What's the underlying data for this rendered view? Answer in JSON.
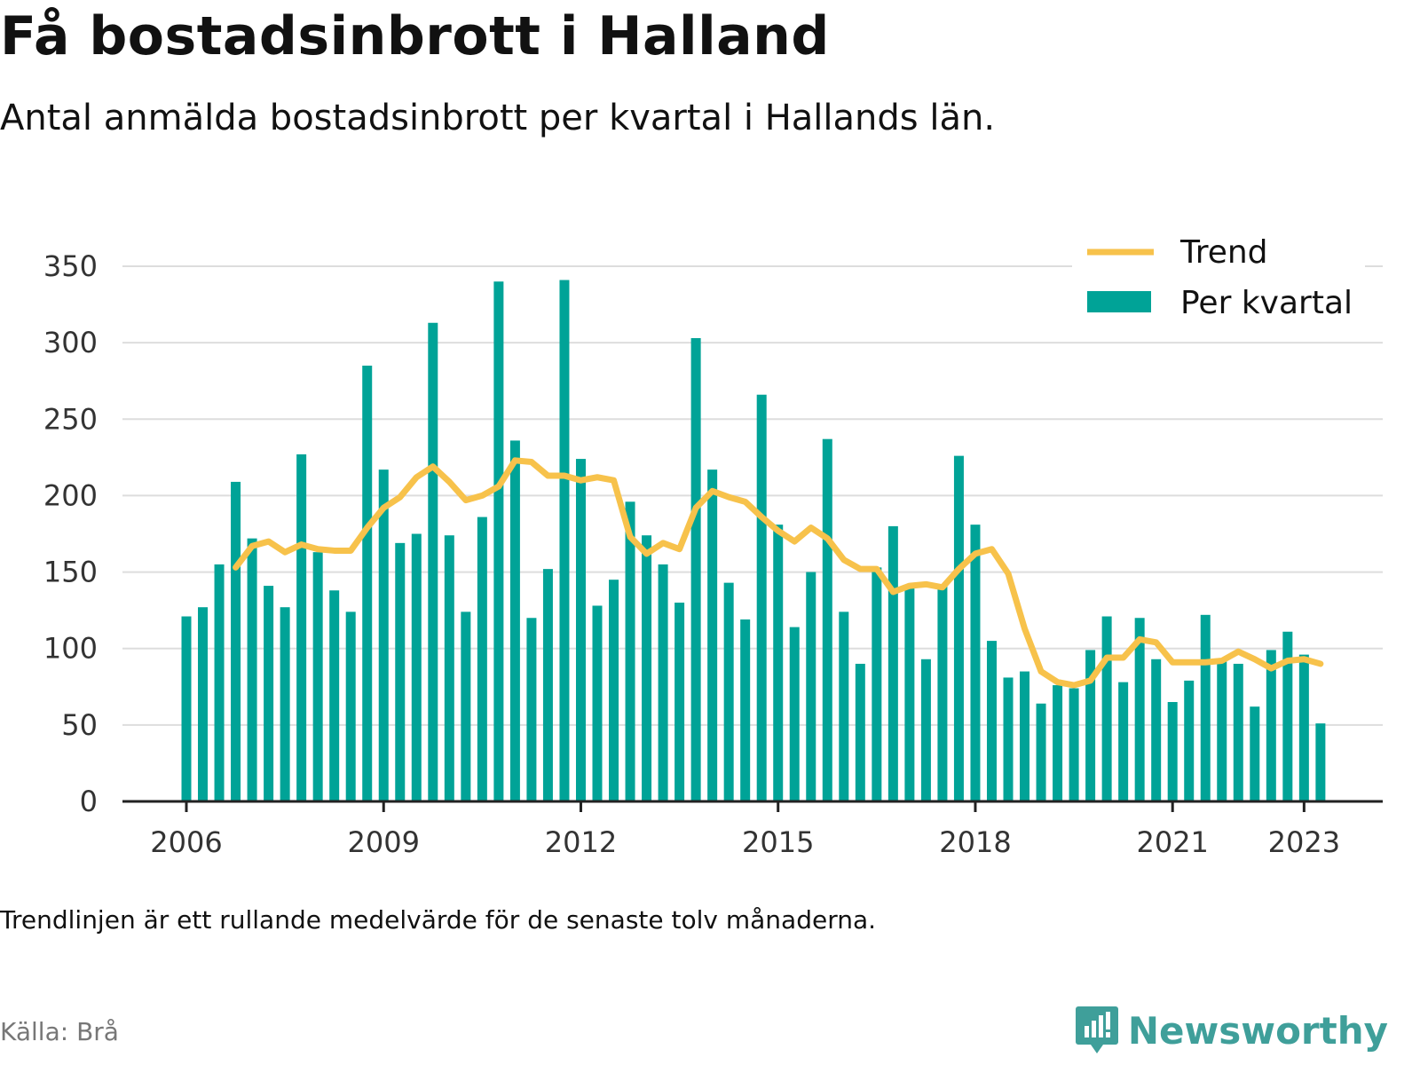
{
  "title": "Få bostadsinbrott i Halland",
  "subtitle": "Antal anmälda bostadsinbrott per kvartal i Hallands län.",
  "note": "Trendlinjen är ett rullande medelvärde för de senaste tolv månaderna.",
  "source": "Källa: Brå",
  "brand": {
    "name": "Newsworthy",
    "icon": "newsworthy-logo-icon",
    "color": "#3f9f9a"
  },
  "colors": {
    "bars": "#00a397",
    "trend": "#f7c24b",
    "grid": "#dddddd",
    "axis": "#222222"
  },
  "chart_data": {
    "type": "bar",
    "x_start": "2006 Q1",
    "x_tick_labels": [
      "2006",
      "2009",
      "2012",
      "2015",
      "2018",
      "2021",
      "2023"
    ],
    "y_ticks": [
      0,
      50,
      100,
      150,
      200,
      250,
      300,
      350
    ],
    "ylim": [
      0,
      350
    ],
    "grid": true,
    "legend_position": "top-right",
    "series": [
      {
        "name": "Per kvartal",
        "type": "bar",
        "values": [
          121,
          127,
          155,
          209,
          172,
          141,
          127,
          227,
          163,
          138,
          124,
          285,
          217,
          169,
          175,
          313,
          174,
          124,
          186,
          340,
          236,
          120,
          152,
          341,
          224,
          128,
          145,
          196,
          174,
          155,
          130,
          303,
          217,
          143,
          119,
          266,
          181,
          114,
          150,
          237,
          124,
          90,
          153,
          180,
          140,
          93,
          141,
          226,
          181,
          105,
          81,
          85,
          64,
          76,
          74,
          99,
          121,
          78,
          120,
          93,
          65,
          79,
          122,
          93,
          90,
          62,
          99,
          111,
          96,
          51
        ]
      },
      {
        "name": "Trend",
        "type": "line",
        "start_index": 3,
        "values": [
          153,
          167,
          170,
          163,
          168,
          165,
          164,
          164,
          179,
          192,
          199,
          212,
          219,
          209,
          197,
          200,
          206,
          223,
          222,
          213,
          213,
          210,
          212,
          210,
          173,
          162,
          169,
          165,
          192,
          203,
          199,
          196,
          186,
          177,
          170,
          179,
          172,
          158,
          152,
          152,
          137,
          141,
          142,
          140,
          152,
          162,
          165,
          149,
          113,
          85,
          78,
          76,
          79,
          94,
          94,
          106,
          104,
          91,
          91,
          91,
          92,
          98,
          93,
          87,
          92,
          93,
          90
        ]
      }
    ]
  }
}
